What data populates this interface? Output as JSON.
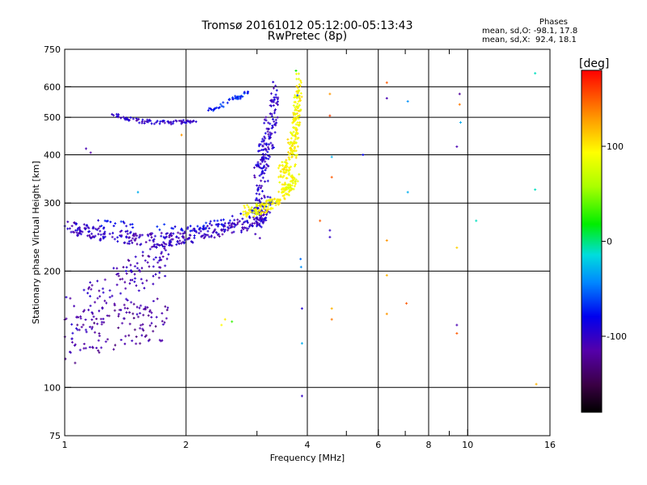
{
  "title": {
    "line1": "Tromsø 20161012 05:12:00-05:13:43",
    "line2": "RwPretec (8p)"
  },
  "phases_box": {
    "heading": "Phases",
    "line1": "mean, sd,O: -98.1, 17.8",
    "line2": "mean, sd,X:  92.4, 18.1"
  },
  "colorbar": {
    "unit_label": "[deg]",
    "ticks": [
      {
        "value": 100,
        "label": "100"
      },
      {
        "value": 0,
        "label": "0"
      },
      {
        "value": -100,
        "label": "-100"
      }
    ],
    "range": [
      -180,
      180
    ]
  },
  "chart_data": {
    "type": "scatter",
    "title": "Tromsø 20161012 05:12:00-05:13:43 RwPretec (8p)",
    "xlabel": "Frequency [MHz]",
    "ylabel": "Stationary phase Virtual Height [km]",
    "x_scale": "log",
    "y_scale": "log",
    "xlim": [
      1,
      16
    ],
    "ylim": [
      75,
      750
    ],
    "xticks": [
      {
        "value": 1,
        "label": "1",
        "grid": "full"
      },
      {
        "value": 2,
        "label": "2",
        "grid": "full"
      },
      {
        "value": 4,
        "label": "4",
        "grid": "full"
      },
      {
        "value": 6,
        "label": "6",
        "grid": "full"
      },
      {
        "value": 8,
        "label": "8",
        "grid": "full"
      },
      {
        "value": 10,
        "label": "10",
        "grid": "full"
      },
      {
        "value": 16,
        "label": "16",
        "grid": "none"
      }
    ],
    "xminor": [
      3,
      5,
      7,
      9
    ],
    "yticks": [
      {
        "value": 75,
        "label": "75",
        "grid": "none"
      },
      {
        "value": 100,
        "label": "100",
        "grid": "full"
      },
      {
        "value": 200,
        "label": "200",
        "grid": "full"
      },
      {
        "value": 300,
        "label": "300",
        "grid": "full"
      },
      {
        "value": 400,
        "label": "400",
        "grid": "full"
      },
      {
        "value": 500,
        "label": "500",
        "grid": "full"
      },
      {
        "value": 600,
        "label": "600",
        "grid": "full"
      },
      {
        "value": 750,
        "label": "750",
        "grid": "none"
      }
    ],
    "color_by": "phase [deg]",
    "series": [
      {
        "traces": [
          {
            "x": [
              1.0,
              1.2,
              1.4,
              1.6,
              1.8
            ],
            "y": [
              125,
              140,
              148,
              150,
              152
            ],
            "phase": -118,
            "spread": 20,
            "n": 120
          },
          {
            "x": [
              1.0,
              1.2,
              1.4,
              1.6,
              1.8
            ],
            "y": [
              150,
              165,
              185,
              205,
              218
            ],
            "phase": -108,
            "spread": 25,
            "n": 130
          },
          {
            "x": [
              1.0,
              1.1,
              1.3,
              1.5,
              1.7,
              1.9,
              2.1,
              2.4,
              2.7,
              3.0,
              3.2
            ],
            "y": [
              262,
              255,
              248,
              242,
              240,
              243,
              248,
              255,
              262,
              272,
              280
            ],
            "phase": -102,
            "spread": 10,
            "n": 360
          },
          {
            "x": [
              1.2,
              1.5,
              1.8,
              2.1,
              2.4,
              2.7,
              3.0,
              3.3
            ],
            "y": [
              265,
              262,
              258,
              258,
              265,
              275,
              290,
              310
            ],
            "phase": -80,
            "spread": 6,
            "n": 80
          },
          {
            "x": [
              3.0,
              3.05,
              3.12,
              3.2,
              3.28,
              3.35
            ],
            "y": [
              300,
              350,
              400,
              450,
              500,
              550
            ],
            "phase": -98,
            "spread": 70,
            "n": 180
          },
          {
            "x": [
              1.3,
              1.5,
              1.7,
              1.9,
              2.1
            ],
            "y": [
              510,
              490,
              485,
              485,
              490
            ],
            "phase": -100,
            "spread": 6,
            "n": 80
          },
          {
            "x": [
              2.3,
              2.5,
              2.7,
              2.85
            ],
            "y": [
              520,
              545,
              565,
              580
            ],
            "phase": -70,
            "spread": 6,
            "n": 45
          },
          {
            "x": [
              2.8,
              3.0,
              3.2,
              3.4,
              3.6,
              3.75
            ],
            "y": [
              285,
              288,
              295,
              310,
              330,
              350
            ],
            "phase": 92,
            "spread": 10,
            "n": 150
          },
          {
            "x": [
              3.45,
              3.55,
              3.65,
              3.72,
              3.78,
              3.82
            ],
            "y": [
              330,
              360,
              400,
              450,
              520,
              620
            ],
            "phase": 95,
            "spread": 40,
            "n": 220
          }
        ]
      },
      {
        "points": [
          [
            1.13,
            415,
            -110
          ],
          [
            1.16,
            405,
            -115
          ],
          [
            1.52,
            320,
            -30
          ],
          [
            1.42,
            200,
            -90
          ],
          [
            2.5,
            150,
            100
          ],
          [
            2.45,
            145,
            95
          ],
          [
            2.6,
            148,
            30
          ],
          [
            1.95,
            450,
            130
          ],
          [
            3.85,
            215,
            -50
          ],
          [
            3.86,
            205,
            -40
          ],
          [
            3.88,
            160,
            -95
          ],
          [
            3.88,
            95,
            -100
          ],
          [
            3.88,
            130,
            -30
          ],
          [
            4.6,
            395,
            -30
          ],
          [
            4.55,
            255,
            -100
          ],
          [
            4.55,
            245,
            -100
          ],
          [
            4.6,
            160,
            120
          ],
          [
            4.6,
            150,
            140
          ],
          [
            4.55,
            575,
            130
          ],
          [
            4.55,
            505,
            160
          ],
          [
            4.6,
            350,
            150
          ],
          [
            4.3,
            270,
            150
          ],
          [
            5.5,
            400,
            -80
          ],
          [
            6.3,
            615,
            150
          ],
          [
            6.3,
            560,
            -110
          ],
          [
            6.3,
            240,
            130
          ],
          [
            6.3,
            195,
            120
          ],
          [
            6.3,
            155,
            130
          ],
          [
            7.1,
            550,
            -40
          ],
          [
            7.1,
            320,
            -30
          ],
          [
            7.05,
            165,
            150
          ],
          [
            9.4,
            420,
            -110
          ],
          [
            9.55,
            575,
            -120
          ],
          [
            9.55,
            540,
            140
          ],
          [
            9.6,
            485,
            -30
          ],
          [
            9.4,
            230,
            110
          ],
          [
            9.4,
            145,
            -110
          ],
          [
            9.4,
            138,
            150
          ],
          [
            10.5,
            270,
            -10
          ],
          [
            14.7,
            650,
            -10
          ],
          [
            14.7,
            325,
            -10
          ],
          [
            14.8,
            102,
            120
          ],
          [
            3.75,
            660,
            20
          ],
          [
            3.78,
            570,
            -60
          ]
        ]
      }
    ]
  }
}
